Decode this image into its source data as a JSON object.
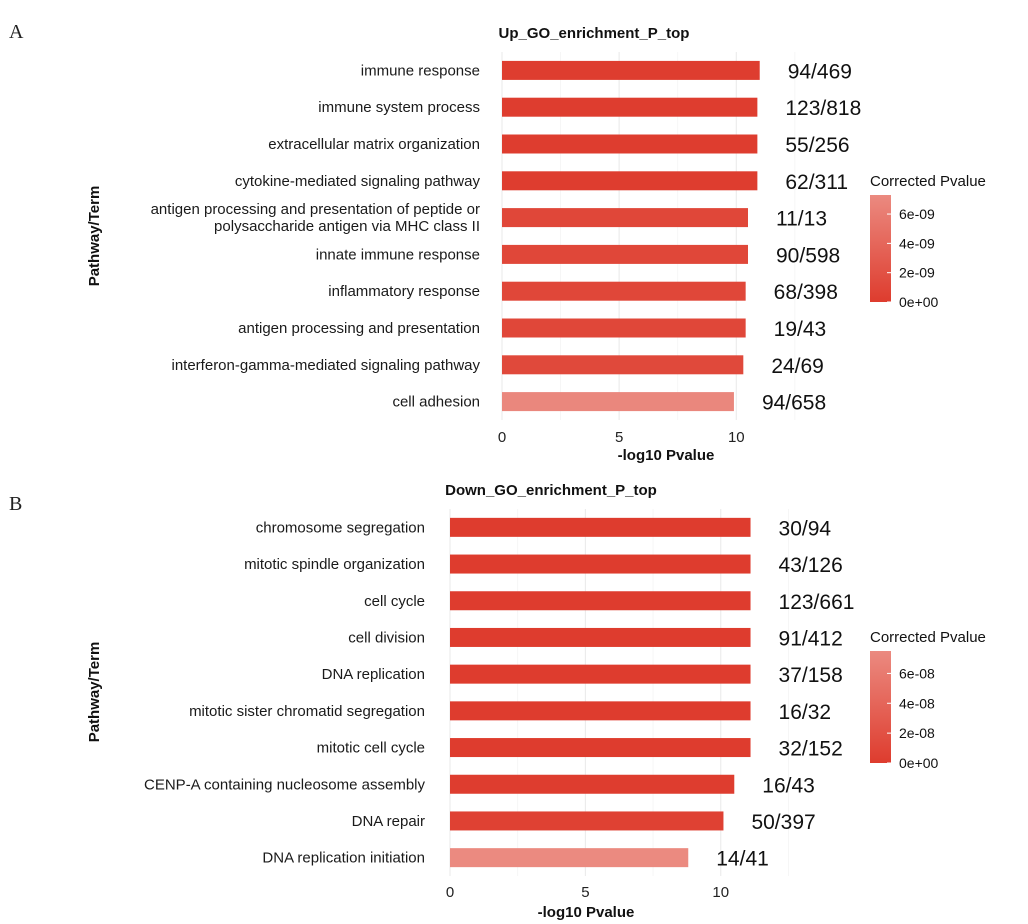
{
  "panel_labels": [
    "A",
    "B"
  ],
  "legend": {
    "title": "Corrected Pvalue",
    "color_low": "#DE3C2E",
    "color_high": "#EB8A80"
  },
  "chart_data": [
    {
      "type": "bar",
      "orientation": "horizontal",
      "panel": "A",
      "title": "Up_GO_enrichment_P_top",
      "xlabel": "-log10 Pvalue",
      "ylabel": "Pathway/Term",
      "xlim": [
        0,
        14
      ],
      "xticks": [
        0,
        5,
        10
      ],
      "grid": true,
      "legend_position": "right",
      "categories": [
        [
          "immune response"
        ],
        [
          "immune system process"
        ],
        [
          "extracellular matrix organization"
        ],
        [
          "cytokine-mediated signaling pathway"
        ],
        [
          "antigen processing and presentation of peptide or",
          "polysaccharide antigen via MHC class II"
        ],
        [
          "innate immune response"
        ],
        [
          "inflammatory response"
        ],
        [
          "antigen processing and presentation"
        ],
        [
          "interferon-gamma-mediated signaling pathway"
        ],
        [
          "cell adhesion"
        ]
      ],
      "values": [
        11.0,
        10.9,
        10.9,
        10.9,
        10.5,
        10.5,
        10.4,
        10.4,
        10.3,
        9.9
      ],
      "labels": [
        "94/469",
        "123/818",
        "55/256",
        "62/311",
        "11/13",
        "90/598",
        "68/398",
        "19/43",
        "24/69",
        "94/658"
      ],
      "corrected_pvalue": [
        1e-10,
        1e-10,
        1e-10,
        1e-10,
        1e-09,
        1e-09,
        1e-09,
        1e-09,
        1.2e-09,
        7e-09
      ],
      "legend_ticks": [
        "6e-09",
        "4e-09",
        "2e-09",
        "0e+00"
      ],
      "legend_tick_values": [
        6e-09,
        4e-09,
        2e-09,
        0
      ],
      "legend_range": [
        0,
        7.3e-09
      ]
    },
    {
      "type": "bar",
      "orientation": "horizontal",
      "panel": "B",
      "title": "Down_GO_enrichment_P_top",
      "xlabel": "-log10 Pvalue",
      "ylabel": "Pathway/Term",
      "xlim": [
        0,
        14.7
      ],
      "xticks": [
        0,
        5,
        10
      ],
      "grid": true,
      "legend_position": "right",
      "categories": [
        [
          "chromosome segregation"
        ],
        [
          "mitotic spindle organization"
        ],
        [
          "cell cycle"
        ],
        [
          "cell division"
        ],
        [
          "DNA replication"
        ],
        [
          "mitotic sister chromatid segregation"
        ],
        [
          "mitotic cell cycle"
        ],
        [
          "CENP-A containing nucleosome assembly"
        ],
        [
          "DNA repair"
        ],
        [
          "DNA replication initiation"
        ]
      ],
      "values": [
        11.1,
        11.1,
        11.1,
        11.1,
        11.1,
        11.1,
        11.1,
        10.5,
        10.1,
        8.8
      ],
      "labels": [
        "30/94",
        "43/126",
        "123/661",
        "91/412",
        "37/158",
        "16/32",
        "32/152",
        "16/43",
        "50/397",
        "14/41"
      ],
      "corrected_pvalue": [
        1e-10,
        1e-10,
        1e-10,
        1e-10,
        1e-10,
        1e-10,
        1e-10,
        1e-09,
        5e-09,
        7.5e-08
      ],
      "legend_ticks": [
        "6e-08",
        "4e-08",
        "2e-08",
        "0e+00"
      ],
      "legend_tick_values": [
        6e-08,
        4e-08,
        2e-08,
        0
      ],
      "legend_range": [
        0,
        7.5e-08
      ]
    }
  ]
}
